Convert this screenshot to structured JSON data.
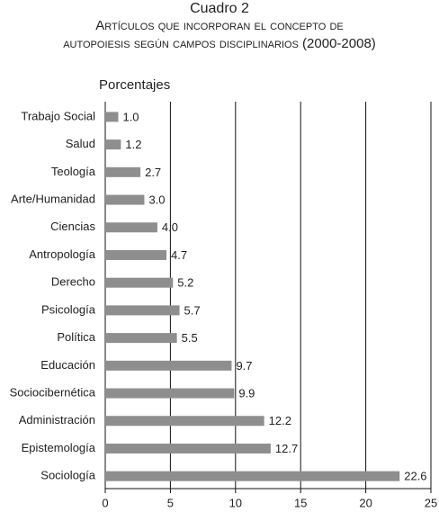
{
  "chart_data": {
    "type": "hbar",
    "title": "Cuadro 2",
    "subtitle": [
      "Artículos que incorporan el concepto de",
      "autopoiesis según campos disciplinarios (2000-2008)"
    ],
    "value_axis_label": "Porcentajes",
    "categories": [
      "Trabajo Social",
      "Salud",
      "Teología",
      "Arte/Humanidad",
      "Ciencias",
      "Antropología",
      "Derecho",
      "Psicología",
      "Política",
      "Educación",
      "Sociocibernética",
      "Administración",
      "Epistemología",
      "Sociología"
    ],
    "values": [
      1.0,
      1.2,
      2.7,
      3.0,
      4.0,
      4.7,
      5.2,
      5.7,
      5.5,
      9.7,
      9.9,
      12.2,
      12.7,
      22.6
    ],
    "value_labels": [
      "1.0",
      "1.2",
      "2.7",
      "3.0",
      "4.0",
      "4.7",
      "5.2",
      "5.7",
      "5.5",
      "9.7",
      "9.9",
      "12.2",
      "12.7",
      "22.6"
    ],
    "color": "#8e8e8e",
    "xlim": [
      0,
      25
    ],
    "xticks": [
      0,
      5,
      10,
      15,
      20,
      25
    ],
    "grid": true
  }
}
